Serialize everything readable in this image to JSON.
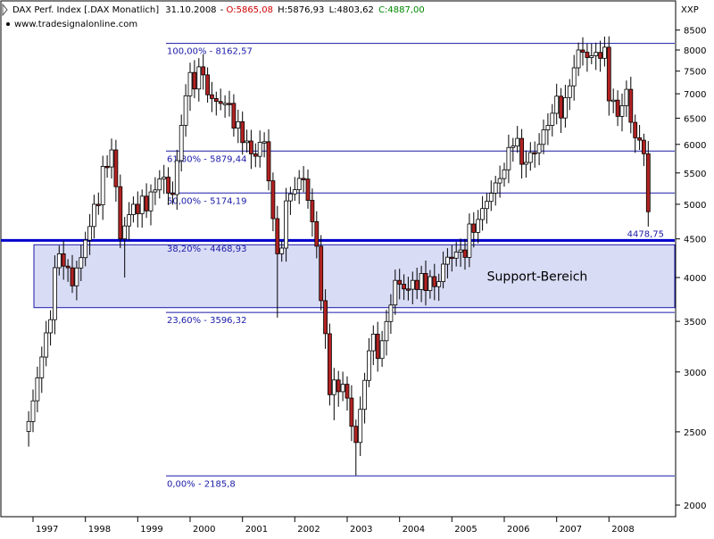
{
  "header": {
    "instrument": "DAX Perf. Index [.DAX  Monatlich]",
    "date": "31.10.2008",
    "open": "O:5865,08",
    "high": "H:5876,93",
    "low": "L:4803,62",
    "close": "C:4887,00",
    "website": "www.tradesignalonline.com",
    "axis_unit": "XXP"
  },
  "colors": {
    "up_candle": "#ffffff",
    "down_candle": "#b22222",
    "candle_outline": "#000000",
    "fib_line": "#1a1aa8",
    "support_line": "#0000cc",
    "support_box_fill": "#d9dcf5",
    "support_box_border": "#1a1aa8",
    "open_value": "#cc0000",
    "close_value": "#008800"
  },
  "chart_data": {
    "type": "candlestick",
    "scale": "log",
    "ylim": [
      2000,
      8700
    ],
    "y_ticks": [
      2000,
      2500,
      3000,
      3500,
      4000,
      4500,
      5000,
      5500,
      6000,
      6500,
      7000,
      7500,
      8000,
      8500
    ],
    "x_ticks": [
      "1997",
      "1998",
      "1999",
      "2000",
      "2001",
      "2002",
      "2003",
      "2004",
      "2005",
      "2006",
      "2007",
      "2008"
    ],
    "fib_levels": [
      {
        "label": "100,00% - 8162,57",
        "value": 8162.57
      },
      {
        "label": "61,80% - 5879,44",
        "value": 5879.44
      },
      {
        "label": "50,00% - 5174,19",
        "value": 5174.19
      },
      {
        "label": "38,20% - 4468,93",
        "value": 4468.93
      },
      {
        "label": "23,60% - 3596,32",
        "value": 3596.32
      },
      {
        "label": "0,00% - 2185,8",
        "value": 2185.8
      }
    ],
    "support_line": {
      "label": "4478,75",
      "value": 4478.75
    },
    "support_zone": {
      "label": "Support-Bereich",
      "low": 3650,
      "high": 4420
    },
    "anchors": [
      [
        "1996-12",
        2580
      ],
      [
        "1997-04",
        3380
      ],
      [
        "1997-07",
        4300
      ],
      [
        "1997-10",
        3900
      ],
      [
        "1997-12",
        4250
      ],
      [
        "1998-03",
        5000
      ],
      [
        "1998-07",
        5900
      ],
      [
        "1998-09",
        4500
      ],
      [
        "1998-12",
        5000
      ],
      [
        "1999-03",
        4900
      ],
      [
        "1999-06",
        5400
      ],
      [
        "1999-09",
        5150
      ],
      [
        "1999-12",
        6958
      ],
      [
        "2000-03",
        7600
      ],
      [
        "2000-06",
        6900
      ],
      [
        "2000-09",
        6800
      ],
      [
        "2000-12",
        6430
      ],
      [
        "2001-03",
        5830
      ],
      [
        "2001-06",
        6050
      ],
      [
        "2001-09",
        4300
      ],
      [
        "2001-12",
        5160
      ],
      [
        "2002-03",
        5400
      ],
      [
        "2002-06",
        4400
      ],
      [
        "2002-09",
        2800
      ],
      [
        "2002-12",
        2890
      ],
      [
        "2003-03",
        2420
      ],
      [
        "2003-06",
        3200
      ],
      [
        "2003-09",
        3300
      ],
      [
        "2003-12",
        3965
      ],
      [
        "2004-03",
        3860
      ],
      [
        "2004-06",
        4050
      ],
      [
        "2004-09",
        3890
      ],
      [
        "2004-12",
        4256
      ],
      [
        "2005-03",
        4350
      ],
      [
        "2005-06",
        4590
      ],
      [
        "2005-09",
        5044
      ],
      [
        "2005-12",
        5408
      ],
      [
        "2006-03",
        5970
      ],
      [
        "2006-06",
        5680
      ],
      [
        "2006-09",
        6000
      ],
      [
        "2006-12",
        6597
      ],
      [
        "2007-03",
        6920
      ],
      [
        "2007-06",
        8000
      ],
      [
        "2007-09",
        7860
      ],
      [
        "2007-12",
        8067
      ],
      [
        "2008-01",
        6851
      ],
      [
        "2008-03",
        6535
      ],
      [
        "2008-05",
        7096
      ],
      [
        "2008-06",
        6418
      ],
      [
        "2008-09",
        5831
      ],
      [
        "2008-10",
        4887
      ]
    ],
    "spike_lows": [
      [
        "1998-10",
        4000
      ],
      [
        "2001-09",
        3540
      ],
      [
        "2002-10",
        2590
      ],
      [
        "2003-03",
        2189
      ]
    ]
  }
}
